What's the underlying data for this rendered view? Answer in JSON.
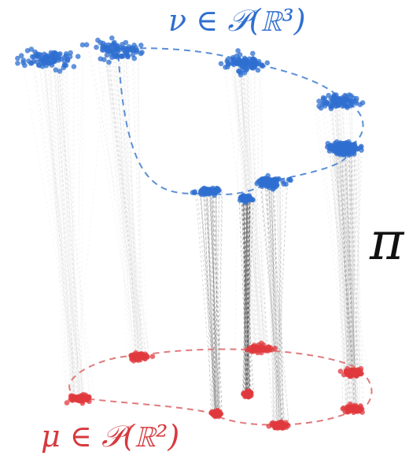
{
  "labels": {
    "target_measure": "ν ∈ 𝒫(ℝ³)",
    "source_measure": "μ ∈ 𝒫(ℝ²)",
    "coupling": "π"
  },
  "colors": {
    "target": "#2f6fd0",
    "source": "#e0393e",
    "lines": "#555555",
    "target_ring": "#5b8fd6",
    "source_ring": "#e07a7c"
  },
  "pairs": [
    {
      "id": "a",
      "density": "medium"
    },
    {
      "id": "b",
      "density": "medium"
    },
    {
      "id": "c",
      "density": "medium"
    },
    {
      "id": "d",
      "density": "medium"
    },
    {
      "id": "e",
      "density": "high"
    },
    {
      "id": "f",
      "density": "dense"
    },
    {
      "id": "g",
      "density": "very-dense"
    },
    {
      "id": "h",
      "density": "dense"
    },
    {
      "id": "i",
      "density": "medium"
    }
  ]
}
